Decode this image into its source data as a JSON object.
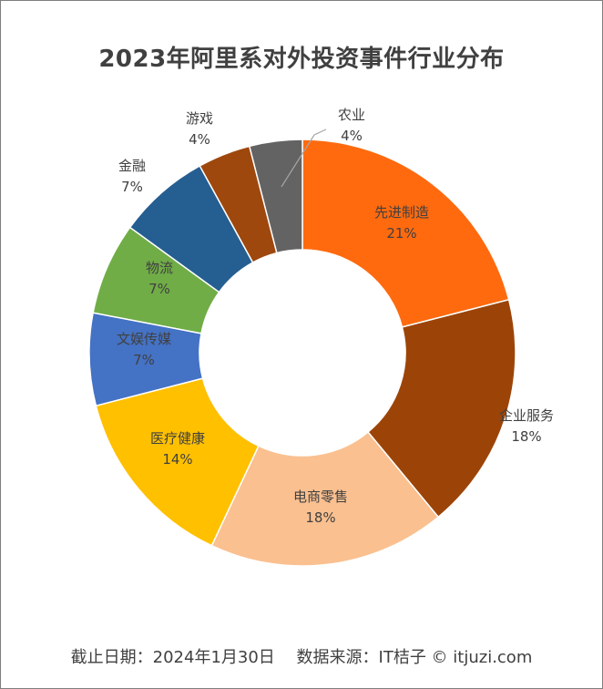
{
  "chart_data": {
    "type": "pie",
    "variant": "donut",
    "title": "2023年阿里系对外投资事件行业分布",
    "slices": [
      {
        "name": "先进制造",
        "value": 21,
        "label": "21%",
        "color": "#FF6A0F"
      },
      {
        "name": "企业服务",
        "value": 18,
        "label": "18%",
        "color": "#9C4408"
      },
      {
        "name": "电商零售",
        "value": 18,
        "label": "18%",
        "color": "#FAC090"
      },
      {
        "name": "医疗健康",
        "value": 14,
        "label": "14%",
        "color": "#FFC000"
      },
      {
        "name": "文娱传媒",
        "value": 7,
        "label": "7%",
        "color": "#4472C4"
      },
      {
        "name": "物流",
        "value": 7,
        "label": "7%",
        "color": "#70AD47"
      },
      {
        "name": "金融",
        "value": 7,
        "label": "7%",
        "color": "#255E91"
      },
      {
        "name": "游戏",
        "value": 4,
        "label": "4%",
        "color": "#9E480E"
      },
      {
        "name": "农业",
        "value": 4,
        "label": "4%",
        "color": "#636363"
      }
    ],
    "legend": "none"
  },
  "footer": {
    "text": "截止日期：2024年1月30日　 数据来源：IT桔子 © itjuzi.com"
  }
}
